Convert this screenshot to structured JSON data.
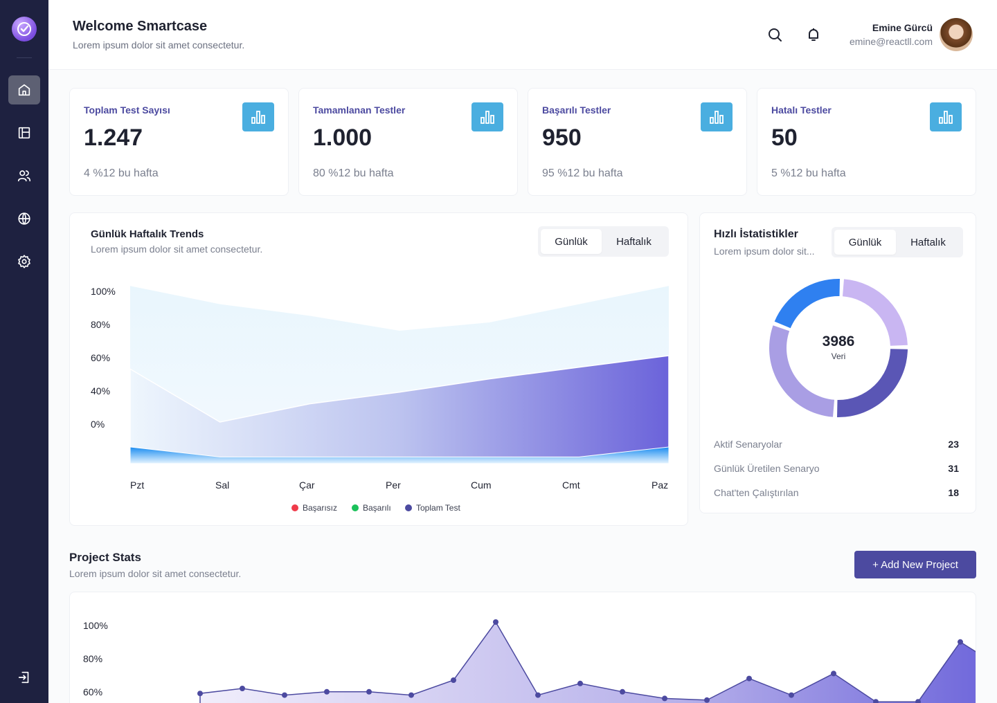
{
  "header": {
    "title": "Welcome Smartcase",
    "subtitle": "Lorem ipsum dolor sit amet consectetur.",
    "user_name": "Emine Gürcü",
    "user_email": "emine@reactll.com"
  },
  "sidebar": {
    "items": [
      {
        "icon": "home-icon"
      },
      {
        "icon": "layout-icon"
      },
      {
        "icon": "users-icon"
      },
      {
        "icon": "globe-icon"
      },
      {
        "icon": "gear-icon"
      }
    ],
    "logout_icon": "logout-icon"
  },
  "stats": [
    {
      "label": "Toplam Test Sayısı",
      "value": "1.247",
      "foot": "4 %12 bu hafta"
    },
    {
      "label": "Tamamlanan Testler",
      "value": "1.000",
      "foot": "80 %12 bu hafta"
    },
    {
      "label": "Başarılı Testler",
      "value": "950",
      "foot": "95 %12 bu hafta"
    },
    {
      "label": "Hatalı Testler",
      "value": "50",
      "foot": "5 %12 bu hafta"
    }
  ],
  "trends": {
    "title": "Günlük Haftalık Trends",
    "subtitle": "Lorem ipsum dolor sit amet consectetur.",
    "tabs": [
      "Günlük",
      "Haftalık"
    ],
    "active_tab": "Günlük"
  },
  "quick_stats": {
    "title": "Hızlı İstatistikler",
    "subtitle": "Lorem ipsum dolor sit...",
    "tabs": [
      "Günlük",
      "Haftalık"
    ],
    "active_tab": "Günlük",
    "donut_value": "3986",
    "donut_label": "Veri",
    "rows": [
      {
        "label": "Aktif Senaryolar",
        "value": "23"
      },
      {
        "label": "Günlük Üretilen Senaryo",
        "value": "31"
      },
      {
        "label": "Chat'ten Çalıştırılan",
        "value": "18"
      }
    ]
  },
  "project_stats": {
    "title": "Project Stats",
    "subtitle": "Lorem ipsum dolor sit amet consectetur.",
    "add_button": "+ Add New Project"
  },
  "colors": {
    "accent": "#4c4aa0",
    "sidebar": "#1e2140",
    "stat_icon": "#4aaee0",
    "basarisiz": "#ef3b4a",
    "basarili": "#1bc15a",
    "toplam": "#4c4aa0"
  },
  "chart_data": [
    {
      "type": "area",
      "categories": [
        "Pzt",
        "Sal",
        "Çar",
        "Per",
        "Cum",
        "Cmt",
        "Paz"
      ],
      "yticks": [
        "100%",
        "80%",
        "60%",
        "40%",
        "0%"
      ],
      "ylim": [
        0,
        100
      ],
      "series": [
        {
          "name": "Başarısız",
          "values": [
            10,
            4,
            4,
            4,
            4,
            4,
            10
          ]
        },
        {
          "name": "Başarılı",
          "values": [
            57,
            25,
            36,
            43,
            51,
            58,
            65
          ]
        },
        {
          "name": "Toplam Test",
          "values": [
            107,
            96,
            89,
            80,
            85,
            96,
            107
          ]
        }
      ],
      "legend_position": "bottom"
    },
    {
      "type": "pie",
      "center_value": "3986",
      "center_label": "Veri",
      "slices": [
        {
          "name": "segment-1",
          "value": 24,
          "color": "#c9b6f2"
        },
        {
          "name": "segment-2",
          "value": 26,
          "color": "#5a56b5"
        },
        {
          "name": "segment-3",
          "value": 30,
          "color": "#a99ee4"
        },
        {
          "name": "segment-4",
          "value": 20,
          "color": "#2f80f0"
        }
      ]
    },
    {
      "type": "area",
      "yticks": [
        "100%",
        "80%",
        "60%"
      ],
      "x": [
        0,
        3,
        6,
        9,
        12,
        15,
        18,
        21,
        24,
        27,
        30,
        33,
        36,
        39,
        42,
        45,
        48,
        51,
        54,
        57
      ],
      "values": [
        57,
        60,
        56,
        58,
        58,
        56,
        65,
        100,
        56,
        63,
        58,
        54,
        53,
        66,
        56,
        69,
        52,
        52,
        88,
        72
      ]
    }
  ]
}
